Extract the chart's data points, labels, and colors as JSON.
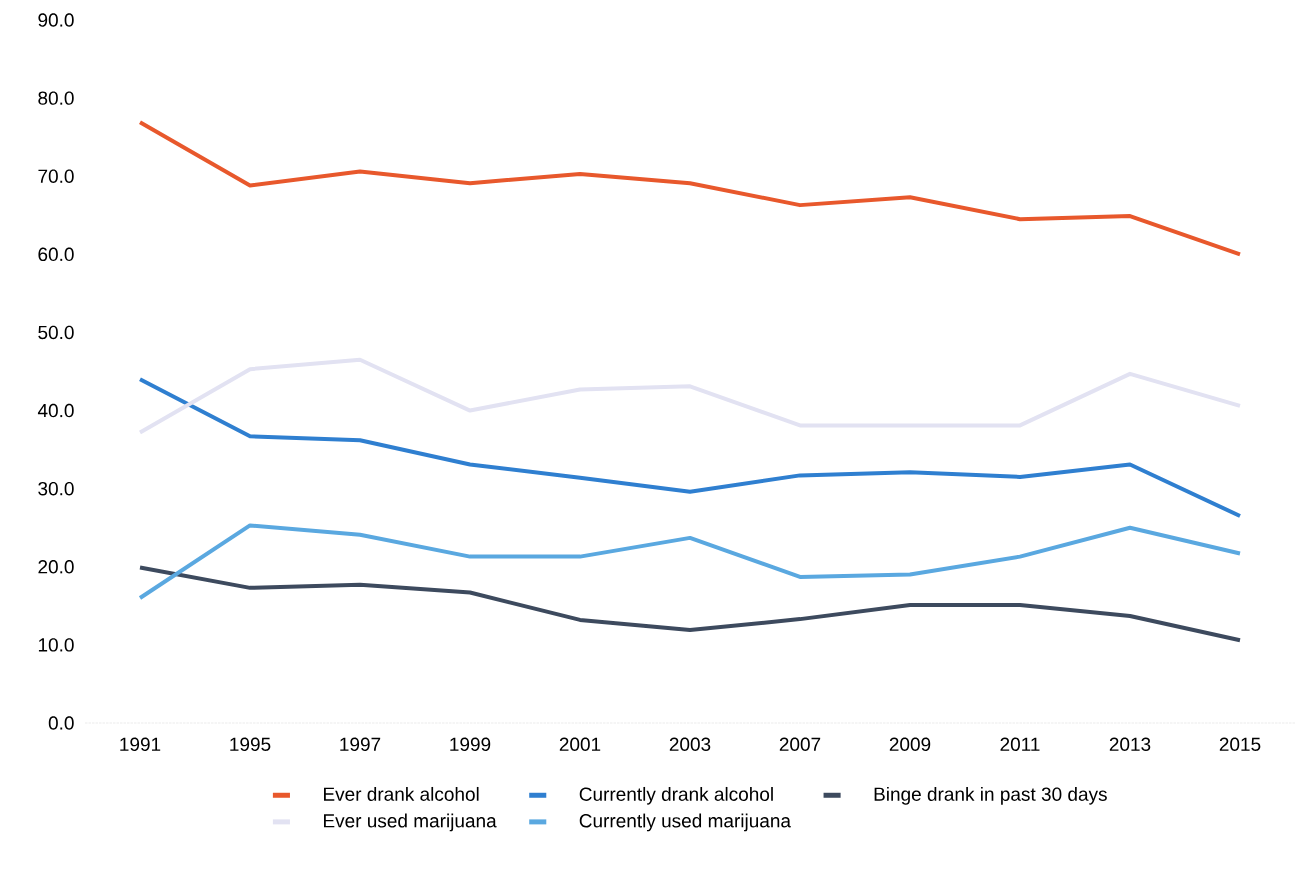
{
  "chart_data": {
    "type": "line",
    "categories": [
      "1991",
      "1995",
      "1997",
      "1999",
      "2001",
      "2003",
      "2007",
      "2009",
      "2011",
      "2013",
      "2015"
    ],
    "series": [
      {
        "name": "Ever drank alcohol",
        "color": "#e8582c",
        "values": [
          76.9,
          68.8,
          70.6,
          69.1,
          70.3,
          69.1,
          66.3,
          67.3,
          64.5,
          64.9,
          60.0
        ]
      },
      {
        "name": "Currently drank alcohol",
        "color": "#2f7fd0",
        "values": [
          44.0,
          36.7,
          36.2,
          33.1,
          31.4,
          29.6,
          31.7,
          32.1,
          31.5,
          33.1,
          26.5
        ]
      },
      {
        "name": "Binge drank in past 30 days",
        "color": "#3d4a5e",
        "values": [
          19.9,
          17.3,
          17.7,
          16.7,
          13.2,
          11.9,
          13.3,
          15.1,
          15.1,
          13.7,
          10.6
        ]
      },
      {
        "name": "Ever used marijuana",
        "color": "#e2e2f2",
        "values": [
          37.2,
          45.3,
          46.5,
          40.0,
          42.7,
          43.1,
          38.1,
          38.1,
          38.1,
          44.7,
          40.6
        ]
      },
      {
        "name": "Currently used marijuana",
        "color": "#5aa8e0",
        "values": [
          16.0,
          25.3,
          24.1,
          21.3,
          21.3,
          23.7,
          18.7,
          19.0,
          21.3,
          25.0,
          21.7
        ]
      }
    ],
    "ylim": [
      0,
      90
    ],
    "yticks": [
      {
        "value": 0,
        "label": "0.0"
      },
      {
        "value": 10,
        "label": "10.0"
      },
      {
        "value": 20,
        "label": "20.0"
      },
      {
        "value": 30,
        "label": "30.0"
      },
      {
        "value": 40,
        "label": "40.0"
      },
      {
        "value": 50,
        "label": "50.0"
      },
      {
        "value": 60,
        "label": "60.0"
      },
      {
        "value": 70,
        "label": "70.0"
      },
      {
        "value": 80,
        "label": "80.0"
      },
      {
        "value": 90,
        "label": "90.0"
      }
    ],
    "legend": "bottom"
  }
}
